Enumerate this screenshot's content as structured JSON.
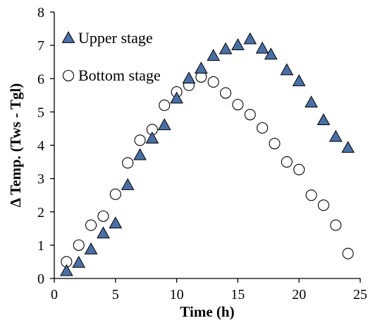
{
  "chart_data": {
    "type": "scatter",
    "title": "",
    "xlabel": "Time (h)",
    "ylabel": "Δ Temp. (Tws - Tgl)",
    "xlim": [
      0,
      25
    ],
    "ylim": [
      0,
      8
    ],
    "x_ticks": [
      0,
      5,
      10,
      15,
      20,
      25
    ],
    "y_ticks": [
      0,
      1,
      2,
      3,
      4,
      5,
      6,
      7,
      8
    ],
    "grid": false,
    "legend_position": "top-left",
    "series": [
      {
        "name": "Upper stage",
        "marker": "triangle",
        "color": "#4a6fa5",
        "points": [
          [
            1,
            0.22
          ],
          [
            2,
            0.47
          ],
          [
            3,
            0.87
          ],
          [
            4,
            1.35
          ],
          [
            5,
            1.65
          ],
          [
            6,
            2.8
          ],
          [
            7,
            3.7
          ],
          [
            8,
            4.2
          ],
          [
            9,
            4.6
          ],
          [
            10,
            5.4
          ],
          [
            11,
            6.0
          ],
          [
            12,
            6.3
          ],
          [
            13,
            6.68
          ],
          [
            14,
            6.88
          ],
          [
            15,
            7.0
          ],
          [
            16,
            7.18
          ],
          [
            17,
            6.9
          ],
          [
            17.7,
            6.72
          ],
          [
            19,
            6.25
          ],
          [
            20,
            5.92
          ],
          [
            21,
            5.28
          ],
          [
            22,
            4.75
          ],
          [
            23,
            4.25
          ],
          [
            24,
            3.92
          ]
        ]
      },
      {
        "name": "Bottom stage",
        "marker": "circle",
        "color": "#ffffff",
        "points": [
          [
            1,
            0.5
          ],
          [
            2,
            1.0
          ],
          [
            3,
            1.6
          ],
          [
            4,
            1.87
          ],
          [
            5,
            2.53
          ],
          [
            6,
            3.47
          ],
          [
            7,
            4.15
          ],
          [
            8,
            4.47
          ],
          [
            9,
            5.2
          ],
          [
            10,
            5.6
          ],
          [
            11,
            5.8
          ],
          [
            12,
            6.05
          ],
          [
            13,
            5.9
          ],
          [
            14,
            5.57
          ],
          [
            15,
            5.22
          ],
          [
            16,
            4.92
          ],
          [
            17,
            4.52
          ],
          [
            18,
            4.05
          ],
          [
            19,
            3.5
          ],
          [
            20,
            3.27
          ],
          [
            21,
            2.5
          ],
          [
            22,
            2.2
          ],
          [
            23,
            1.6
          ],
          [
            24,
            0.75
          ]
        ]
      }
    ]
  }
}
